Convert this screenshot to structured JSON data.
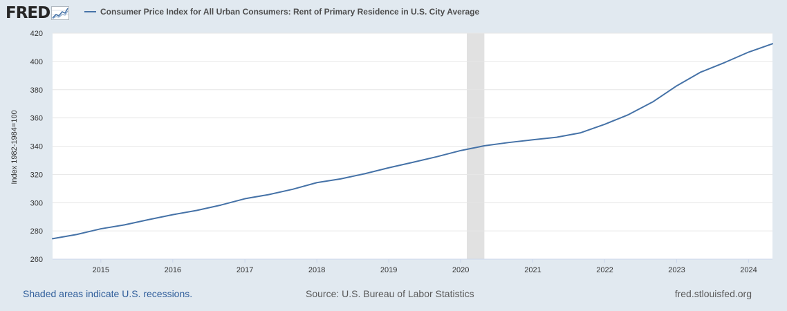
{
  "header": {
    "logo_text": "FRED"
  },
  "chart_data": {
    "type": "line",
    "title": "Consumer Price Index for All Urban Consumers: Rent of Primary Residence in U.S. City Average",
    "ylabel": "Index 1982-1984=100",
    "xlabel": "",
    "ylim": [
      260,
      420
    ],
    "xlim": [
      "2014-05-01",
      "2024-05-01"
    ],
    "y_ticks": [
      260,
      280,
      300,
      320,
      340,
      360,
      380,
      400,
      420
    ],
    "x_ticks": [
      "2015",
      "2016",
      "2017",
      "2018",
      "2019",
      "2020",
      "2021",
      "2022",
      "2023",
      "2024"
    ],
    "grid": "horizontal",
    "series": [
      {
        "name": "Consumer Price Index for All Urban Consumers: Rent of Primary Residence in U.S. City Average",
        "color": "#4572a7",
        "points": [
          [
            "2014-05-01",
            274.5
          ],
          [
            "2014-09-01",
            277.5
          ],
          [
            "2015-01-01",
            281.5
          ],
          [
            "2015-05-01",
            284.3
          ],
          [
            "2015-09-01",
            288.0
          ],
          [
            "2016-01-01",
            291.5
          ],
          [
            "2016-05-01",
            294.5
          ],
          [
            "2016-09-01",
            298.3
          ],
          [
            "2017-01-01",
            302.8
          ],
          [
            "2017-05-01",
            305.7
          ],
          [
            "2017-09-01",
            309.5
          ],
          [
            "2018-01-01",
            314.2
          ],
          [
            "2018-05-01",
            316.8
          ],
          [
            "2018-09-01",
            320.5
          ],
          [
            "2019-01-01",
            324.7
          ],
          [
            "2019-05-01",
            328.5
          ],
          [
            "2019-09-01",
            332.5
          ],
          [
            "2020-01-01",
            336.9
          ],
          [
            "2020-05-01",
            340.3
          ],
          [
            "2020-09-01",
            342.6
          ],
          [
            "2021-01-01",
            344.5
          ],
          [
            "2021-05-01",
            346.3
          ],
          [
            "2021-09-01",
            349.5
          ],
          [
            "2022-01-01",
            355.5
          ],
          [
            "2022-05-01",
            362.3
          ],
          [
            "2022-09-01",
            371.3
          ],
          [
            "2023-01-01",
            382.7
          ],
          [
            "2023-05-01",
            392.3
          ],
          [
            "2023-09-01",
            399.2
          ],
          [
            "2024-01-01",
            406.6
          ],
          [
            "2024-05-01",
            412.5
          ]
        ]
      }
    ],
    "recessions": [
      {
        "start": "2020-02-01",
        "end": "2020-04-30",
        "color": "#e1e1e1"
      }
    ]
  },
  "footer": {
    "recession_note": "Shaded areas indicate U.S. recessions.",
    "source": "Source: U.S. Bureau of Labor Statistics",
    "site": "fred.stlouisfed.org"
  }
}
